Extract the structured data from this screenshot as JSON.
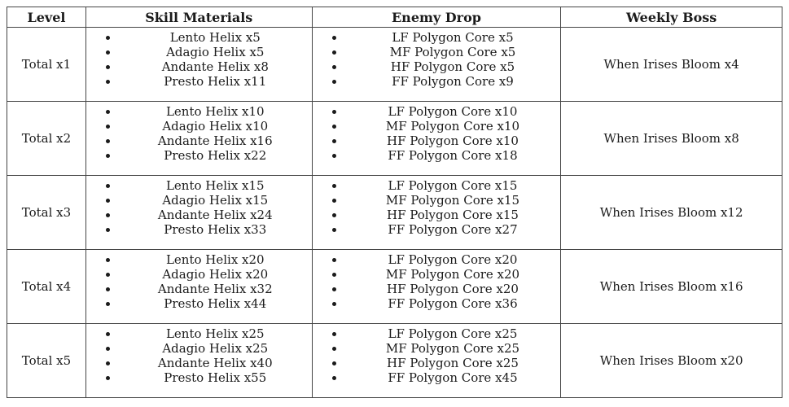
{
  "colors": {
    "background": "#ffffff",
    "border": "#454545",
    "text": "#1b1b1b"
  },
  "table": {
    "headers": [
      "Level",
      "Skill Materials",
      "Enemy Drop",
      "Weekly Boss"
    ],
    "rows": [
      {
        "level": "Total x1",
        "skill_materials": [
          "Lento Helix x5",
          "Adagio Helix x5",
          "Andante Helix x8",
          "Presto Helix x11"
        ],
        "enemy_drop": [
          "LF Polygon Core x5",
          "MF Polygon Core x5",
          "HF Polygon Core x5",
          "FF Polygon Core x9"
        ],
        "weekly_boss": "When Irises Bloom x4"
      },
      {
        "level": "Total x2",
        "skill_materials": [
          "Lento Helix x10",
          "Adagio Helix x10",
          "Andante Helix x16",
          "Presto Helix x22"
        ],
        "enemy_drop": [
          "LF Polygon Core x10",
          "MF Polygon Core x10",
          "HF Polygon Core x10",
          "FF Polygon Core x18"
        ],
        "weekly_boss": "When Irises Bloom x8"
      },
      {
        "level": "Total x3",
        "skill_materials": [
          "Lento Helix x15",
          "Adagio Helix x15",
          "Andante Helix x24",
          "Presto Helix x33"
        ],
        "enemy_drop": [
          "LF Polygon Core x15",
          "MF Polygon Core x15",
          "HF Polygon Core x15",
          "FF Polygon Core x27"
        ],
        "weekly_boss": "When Irises Bloom x12"
      },
      {
        "level": "Total x4",
        "skill_materials": [
          "Lento Helix x20",
          "Adagio Helix x20",
          "Andante Helix x32",
          "Presto Helix x44"
        ],
        "enemy_drop": [
          "LF Polygon Core x20",
          "MF Polygon Core x20",
          "HF Polygon Core x20",
          "FF Polygon Core x36"
        ],
        "weekly_boss": "When Irises Bloom x16"
      },
      {
        "level": "Total x5",
        "skill_materials": [
          "Lento Helix x25",
          "Adagio Helix x25",
          "Andante Helix x40",
          "Presto Helix x55"
        ],
        "enemy_drop": [
          "LF Polygon Core x25",
          "MF Polygon Core x25",
          "HF Polygon Core x25",
          "FF Polygon Core x45"
        ],
        "weekly_boss": "When Irises Bloom x20"
      }
    ]
  }
}
